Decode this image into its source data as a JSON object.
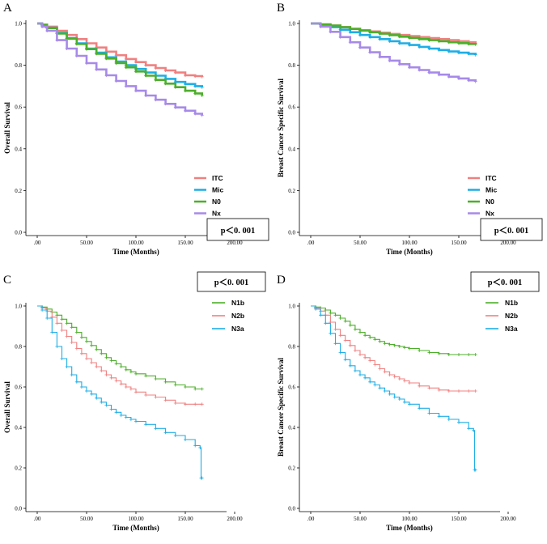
{
  "chart_data": [
    {
      "type": "line",
      "panel": "A",
      "xlabel": "Time (Months)",
      "ylabel": "Overall Survival",
      "xlim": [
        0,
        200
      ],
      "ylim": [
        0,
        1.0
      ],
      "xticks": [
        ".00",
        "50.00",
        "100.00",
        "150.00",
        "200.00"
      ],
      "yticks": [
        "0.0",
        "0.2",
        "0.4",
        "0.6",
        "0.8",
        "1.0"
      ],
      "p_value": "p＜0. 001",
      "legend_position": "bottom-right",
      "series": [
        {
          "name": "ITC",
          "color": "#f08080",
          "x": [
            0,
            5,
            10,
            20,
            30,
            40,
            50,
            60,
            70,
            80,
            90,
            100,
            110,
            120,
            130,
            140,
            150,
            160,
            167
          ],
          "y": [
            1.0,
            0.995,
            0.985,
            0.965,
            0.945,
            0.925,
            0.905,
            0.885,
            0.865,
            0.848,
            0.83,
            0.815,
            0.8,
            0.787,
            0.775,
            0.765,
            0.752,
            0.748,
            0.745
          ]
        },
        {
          "name": "Mic",
          "color": "#1eaee6",
          "x": [
            0,
            5,
            10,
            20,
            30,
            40,
            50,
            60,
            70,
            80,
            90,
            100,
            110,
            120,
            130,
            140,
            150,
            160,
            167
          ],
          "y": [
            1.0,
            0.993,
            0.98,
            0.955,
            0.93,
            0.905,
            0.88,
            0.86,
            0.838,
            0.818,
            0.8,
            0.782,
            0.765,
            0.75,
            0.735,
            0.72,
            0.71,
            0.7,
            0.695
          ]
        },
        {
          "name": "N0",
          "color": "#4caf2a",
          "x": [
            0,
            5,
            10,
            20,
            30,
            40,
            50,
            60,
            70,
            80,
            90,
            100,
            110,
            120,
            130,
            140,
            150,
            160,
            167
          ],
          "y": [
            1.0,
            0.992,
            0.978,
            0.952,
            0.927,
            0.902,
            0.877,
            0.855,
            0.832,
            0.81,
            0.79,
            0.77,
            0.75,
            0.73,
            0.712,
            0.695,
            0.678,
            0.665,
            0.655
          ]
        },
        {
          "name": "Nx",
          "color": "#a78ae8",
          "x": [
            0,
            5,
            10,
            20,
            30,
            40,
            50,
            60,
            70,
            80,
            90,
            100,
            110,
            120,
            130,
            140,
            150,
            160,
            167
          ],
          "y": [
            1.0,
            0.985,
            0.965,
            0.92,
            0.88,
            0.845,
            0.81,
            0.78,
            0.752,
            0.725,
            0.7,
            0.678,
            0.655,
            0.635,
            0.615,
            0.598,
            0.582,
            0.568,
            0.56
          ]
        }
      ]
    },
    {
      "type": "line",
      "panel": "B",
      "xlabel": "Time (Months)",
      "ylabel": "Breast Cancer Specific Survival",
      "xlim": [
        0,
        200
      ],
      "ylim": [
        0,
        1.0
      ],
      "xticks": [
        ".00",
        "50.00",
        "100.00",
        "150.00",
        "200.00"
      ],
      "yticks": [
        "0.0",
        "0.2",
        "0.4",
        "0.6",
        "0.8",
        "1.0"
      ],
      "p_value": "p＜0. 001",
      "legend_position": "bottom-right",
      "series": [
        {
          "name": "ITC",
          "color": "#f08080",
          "x": [
            0,
            10,
            20,
            30,
            40,
            50,
            60,
            70,
            80,
            90,
            100,
            110,
            120,
            130,
            140,
            150,
            160,
            167
          ],
          "y": [
            1.0,
            0.995,
            0.99,
            0.983,
            0.975,
            0.968,
            0.962,
            0.956,
            0.95,
            0.945,
            0.94,
            0.935,
            0.93,
            0.925,
            0.92,
            0.915,
            0.91,
            0.905
          ]
        },
        {
          "name": "Mic",
          "color": "#1eaee6",
          "x": [
            0,
            10,
            20,
            30,
            40,
            50,
            60,
            70,
            80,
            90,
            100,
            110,
            120,
            130,
            140,
            150,
            160,
            167
          ],
          "y": [
            1.0,
            0.993,
            0.982,
            0.97,
            0.958,
            0.945,
            0.935,
            0.925,
            0.915,
            0.905,
            0.897,
            0.888,
            0.88,
            0.873,
            0.866,
            0.86,
            0.855,
            0.85
          ]
        },
        {
          "name": "N0",
          "color": "#4caf2a",
          "x": [
            0,
            10,
            20,
            30,
            40,
            50,
            60,
            70,
            80,
            90,
            100,
            110,
            120,
            130,
            140,
            150,
            160,
            167
          ],
          "y": [
            1.0,
            0.996,
            0.99,
            0.982,
            0.974,
            0.966,
            0.958,
            0.951,
            0.944,
            0.937,
            0.931,
            0.925,
            0.92,
            0.915,
            0.91,
            0.906,
            0.902,
            0.9
          ]
        },
        {
          "name": "Nx",
          "color": "#a78ae8",
          "x": [
            0,
            10,
            20,
            30,
            40,
            50,
            60,
            70,
            80,
            90,
            100,
            110,
            120,
            130,
            140,
            150,
            160,
            167
          ],
          "y": [
            1.0,
            0.985,
            0.96,
            0.935,
            0.91,
            0.885,
            0.862,
            0.84,
            0.822,
            0.805,
            0.79,
            0.777,
            0.765,
            0.755,
            0.745,
            0.737,
            0.728,
            0.722
          ]
        }
      ]
    },
    {
      "type": "line",
      "panel": "C",
      "xlabel": "Time (Months)",
      "ylabel": "Overall Survival",
      "xlim": [
        0,
        200
      ],
      "ylim": [
        0,
        1.0
      ],
      "xticks": [
        ".00",
        "50.00",
        "100.00",
        "150.00",
        "200.00"
      ],
      "yticks": [
        "0.0",
        "0.2",
        "0.4",
        "0.6",
        "0.8",
        "1.0"
      ],
      "p_value": "p＜0. 001",
      "legend_position": "top-right",
      "series": [
        {
          "name": "N1b",
          "color": "#4caf2a",
          "x": [
            0,
            5,
            10,
            15,
            20,
            25,
            30,
            35,
            40,
            45,
            50,
            55,
            60,
            65,
            70,
            75,
            80,
            85,
            90,
            95,
            100,
            110,
            120,
            130,
            140,
            150,
            160,
            167
          ],
          "y": [
            1.0,
            0.995,
            0.985,
            0.97,
            0.955,
            0.935,
            0.915,
            0.895,
            0.87,
            0.845,
            0.825,
            0.805,
            0.785,
            0.765,
            0.745,
            0.73,
            0.715,
            0.7,
            0.685,
            0.675,
            0.665,
            0.655,
            0.64,
            0.625,
            0.61,
            0.6,
            0.59,
            0.59
          ]
        },
        {
          "name": "N2b",
          "color": "#f08080",
          "x": [
            0,
            5,
            10,
            15,
            20,
            25,
            30,
            35,
            40,
            45,
            50,
            55,
            60,
            65,
            70,
            75,
            80,
            85,
            90,
            95,
            100,
            110,
            120,
            130,
            140,
            150,
            160,
            167
          ],
          "y": [
            1.0,
            0.99,
            0.975,
            0.945,
            0.915,
            0.88,
            0.85,
            0.82,
            0.79,
            0.765,
            0.74,
            0.72,
            0.7,
            0.68,
            0.66,
            0.645,
            0.63,
            0.615,
            0.6,
            0.59,
            0.575,
            0.56,
            0.55,
            0.535,
            0.52,
            0.515,
            0.515,
            0.515
          ]
        },
        {
          "name": "N3a",
          "color": "#1eaee6",
          "x": [
            0,
            5,
            10,
            15,
            20,
            25,
            30,
            35,
            40,
            45,
            50,
            55,
            60,
            65,
            70,
            75,
            80,
            85,
            90,
            95,
            100,
            110,
            120,
            130,
            140,
            150,
            160,
            165,
            166,
            167
          ],
          "y": [
            1.0,
            0.98,
            0.94,
            0.87,
            0.8,
            0.74,
            0.7,
            0.66,
            0.625,
            0.6,
            0.58,
            0.565,
            0.545,
            0.525,
            0.51,
            0.49,
            0.475,
            0.46,
            0.45,
            0.44,
            0.43,
            0.415,
            0.395,
            0.375,
            0.36,
            0.34,
            0.31,
            0.3,
            0.15,
            0.15
          ]
        }
      ]
    },
    {
      "type": "line",
      "panel": "D",
      "xlabel": "Time (Months)",
      "ylabel": "Breast Cancer Specific Survival",
      "xlim": [
        0,
        200
      ],
      "ylim": [
        0,
        1.0
      ],
      "xticks": [
        ".00",
        "50.00",
        "100.00",
        "150.00",
        "200.00"
      ],
      "yticks": [
        "0.0",
        "0.2",
        "0.4",
        "0.6",
        "0.8",
        "1.0"
      ],
      "p_value": "p＜0. 001",
      "legend_position": "top-right",
      "series": [
        {
          "name": "N1b",
          "color": "#4caf2a",
          "x": [
            0,
            5,
            10,
            15,
            20,
            25,
            30,
            35,
            40,
            45,
            50,
            55,
            60,
            65,
            70,
            75,
            80,
            85,
            90,
            95,
            100,
            110,
            120,
            130,
            140,
            150,
            160,
            167
          ],
          "y": [
            1.0,
            0.995,
            0.99,
            0.98,
            0.965,
            0.955,
            0.94,
            0.925,
            0.905,
            0.885,
            0.87,
            0.855,
            0.845,
            0.835,
            0.825,
            0.815,
            0.81,
            0.805,
            0.8,
            0.795,
            0.79,
            0.78,
            0.77,
            0.765,
            0.76,
            0.76,
            0.76,
            0.76
          ]
        },
        {
          "name": "N2b",
          "color": "#f08080",
          "x": [
            0,
            5,
            10,
            15,
            20,
            25,
            30,
            35,
            40,
            45,
            50,
            55,
            60,
            65,
            70,
            75,
            80,
            85,
            90,
            95,
            100,
            110,
            120,
            130,
            140,
            150,
            160,
            167
          ],
          "y": [
            1.0,
            0.99,
            0.975,
            0.955,
            0.92,
            0.885,
            0.855,
            0.83,
            0.805,
            0.78,
            0.76,
            0.745,
            0.73,
            0.71,
            0.69,
            0.675,
            0.66,
            0.65,
            0.64,
            0.63,
            0.62,
            0.605,
            0.595,
            0.585,
            0.58,
            0.58,
            0.58,
            0.58
          ]
        },
        {
          "name": "N3a",
          "color": "#1eaee6",
          "x": [
            0,
            5,
            10,
            15,
            20,
            25,
            30,
            35,
            40,
            45,
            50,
            55,
            60,
            65,
            70,
            75,
            80,
            85,
            90,
            95,
            100,
            110,
            120,
            130,
            140,
            150,
            160,
            165,
            166,
            167
          ],
          "y": [
            1.0,
            0.985,
            0.955,
            0.915,
            0.865,
            0.815,
            0.77,
            0.735,
            0.705,
            0.68,
            0.66,
            0.645,
            0.625,
            0.61,
            0.595,
            0.58,
            0.565,
            0.55,
            0.54,
            0.525,
            0.515,
            0.495,
            0.47,
            0.455,
            0.44,
            0.425,
            0.395,
            0.385,
            0.19,
            0.19
          ]
        }
      ]
    }
  ]
}
